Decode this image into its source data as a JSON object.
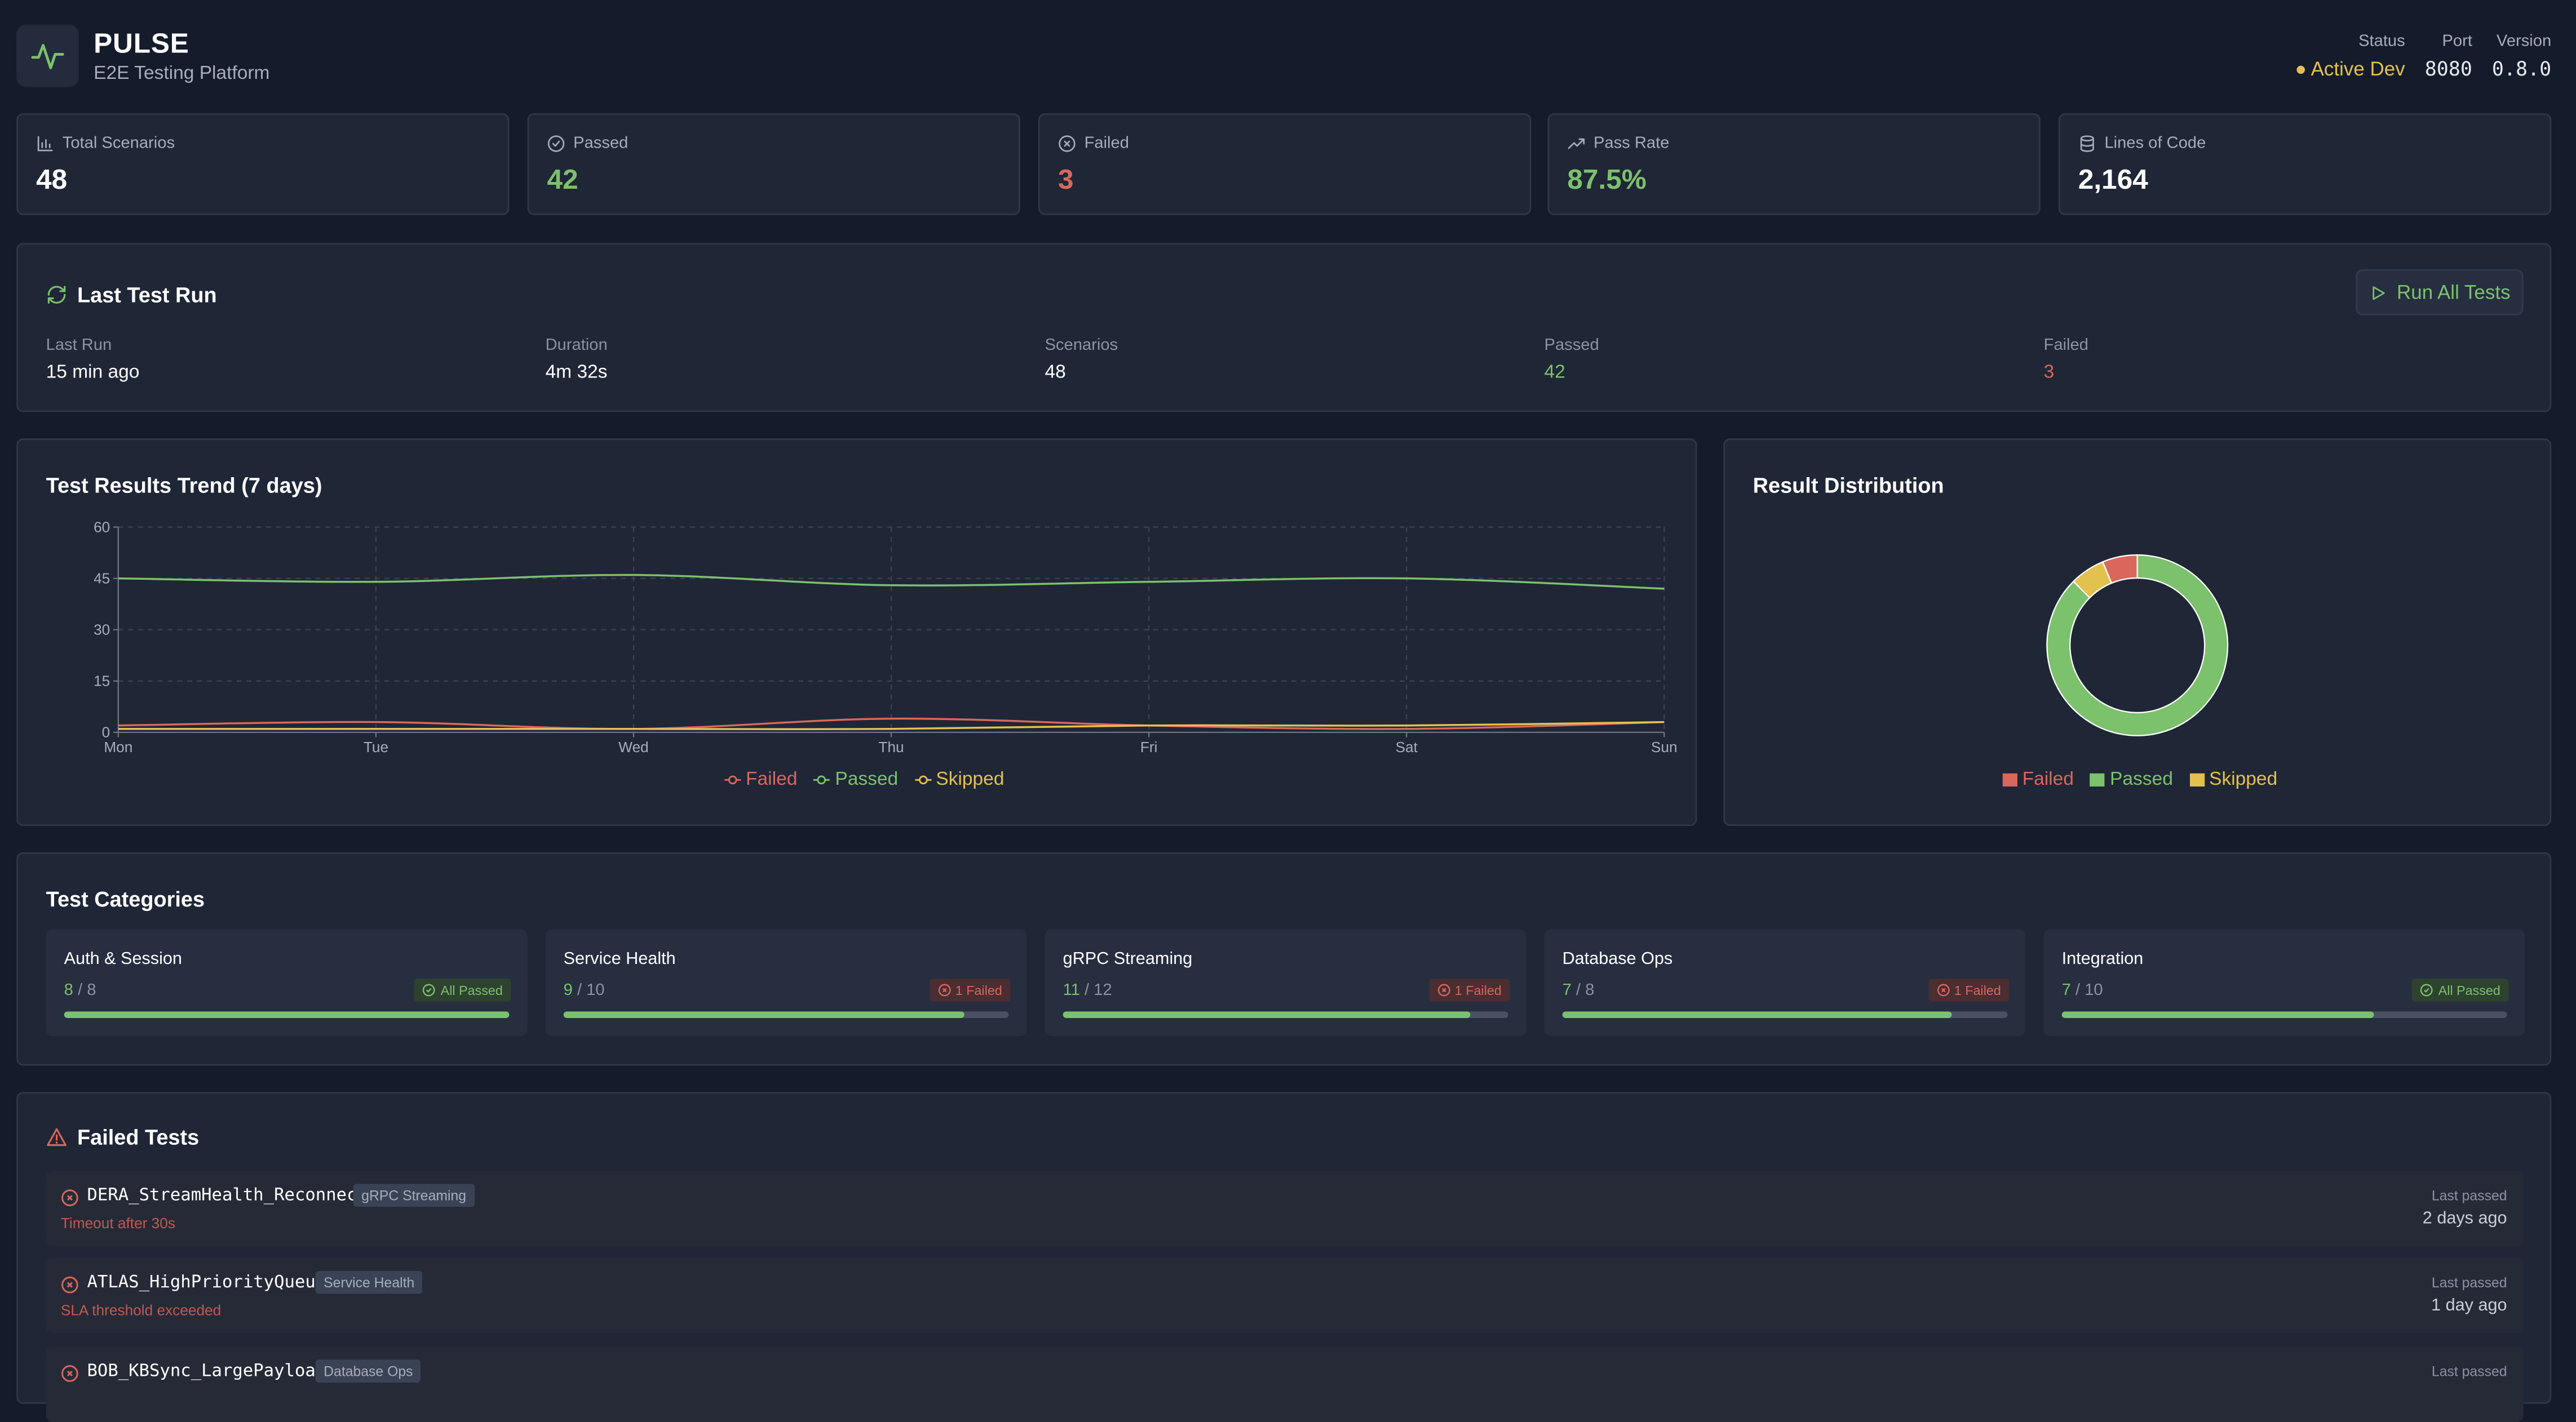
{
  "header": {
    "title": "PULSE",
    "subtitle": "E2E Testing Platform",
    "status_label": "Status",
    "status_value": "Active Dev",
    "port_label": "Port",
    "port_value": "8080",
    "version_label": "Version",
    "version_value": "0.8.0"
  },
  "stats": [
    {
      "label": "Total Scenarios",
      "value": "48",
      "icon": "bar-chart-icon",
      "color": "#ffffff"
    },
    {
      "label": "Passed",
      "value": "42",
      "icon": "check-circle-icon",
      "color": "#7cc16c"
    },
    {
      "label": "Failed",
      "value": "3",
      "icon": "x-circle-icon",
      "color": "#d9675b"
    },
    {
      "label": "Pass Rate",
      "value": "87.5%",
      "icon": "trending-up-icon",
      "color": "#7cc16c"
    },
    {
      "label": "Lines of Code",
      "value": "2,164",
      "icon": "database-icon",
      "color": "#ffffff"
    }
  ],
  "last_run": {
    "title": "Last Test Run",
    "button_label": "Run All Tests",
    "fields": [
      {
        "label": "Last Run",
        "value": "15 min ago"
      },
      {
        "label": "Duration",
        "value": "4m 32s"
      },
      {
        "label": "Scenarios",
        "value": "48"
      },
      {
        "label": "Passed",
        "value": "42"
      },
      {
        "label": "Failed",
        "value": "3"
      }
    ]
  },
  "trend": {
    "title": "Test Results Trend (7 days)"
  },
  "distribution": {
    "title": "Result Distribution"
  },
  "chart_data": [
    {
      "type": "line",
      "title": "Test Results Trend (7 days)",
      "categories": [
        "Mon",
        "Tue",
        "Wed",
        "Thu",
        "Fri",
        "Sat",
        "Sun"
      ],
      "ylim": [
        0,
        60
      ],
      "yticks": [
        0,
        15,
        30,
        45,
        60
      ],
      "grid": true,
      "legend": "bottom",
      "series": [
        {
          "name": "Failed",
          "color": "#d9675b",
          "values": [
            2,
            3,
            1,
            4,
            2,
            1,
            3
          ]
        },
        {
          "name": "Passed",
          "color": "#7cc16c",
          "values": [
            45,
            44,
            46,
            43,
            44,
            45,
            42
          ]
        },
        {
          "name": "Skipped",
          "color": "#e3c14f",
          "values": [
            1,
            1,
            1,
            1,
            2,
            2,
            3
          ]
        }
      ]
    },
    {
      "type": "pie",
      "title": "Result Distribution",
      "legend": "bottom",
      "slices": [
        {
          "name": "Failed",
          "color": "#d9675b",
          "value": 3
        },
        {
          "name": "Passed",
          "color": "#7cc16c",
          "value": 42
        },
        {
          "name": "Skipped",
          "color": "#e3c14f",
          "value": 3
        }
      ]
    }
  ],
  "categories": {
    "title": "Test Categories",
    "items": [
      {
        "name": "Auth & Session",
        "passed": "8",
        "total": "8",
        "badge": "All Passed",
        "status": "pass",
        "fraction": 1.0
      },
      {
        "name": "Service Health",
        "passed": "9",
        "total": "10",
        "badge": "1 Failed",
        "status": "fail",
        "fraction": 0.9
      },
      {
        "name": "gRPC Streaming",
        "passed": "11",
        "total": "12",
        "badge": "1 Failed",
        "status": "fail",
        "fraction": 0.9167
      },
      {
        "name": "Database Ops",
        "passed": "7",
        "total": "8",
        "badge": "1 Failed",
        "status": "fail",
        "fraction": 0.875
      },
      {
        "name": "Integration",
        "passed": "7",
        "total": "10",
        "badge": "All Passed",
        "status": "pass",
        "fraction": 0.7
      }
    ]
  },
  "failed_tests": {
    "title": "Failed Tests",
    "last_passed_label": "Last passed",
    "items": [
      {
        "name": "DERA_StreamHealth_Reconnect",
        "tag": "gRPC Streaming",
        "reason": "Timeout after 30s",
        "last_passed": "2 days ago"
      },
      {
        "name": "ATLAS_HighPriorityQueue",
        "tag": "Service Health",
        "reason": "SLA threshold exceeded",
        "last_passed": "1 day ago"
      },
      {
        "name": "BOB_KBSync_LargePayload",
        "tag": "Database Ops",
        "reason": "",
        "last_passed": ""
      }
    ]
  }
}
